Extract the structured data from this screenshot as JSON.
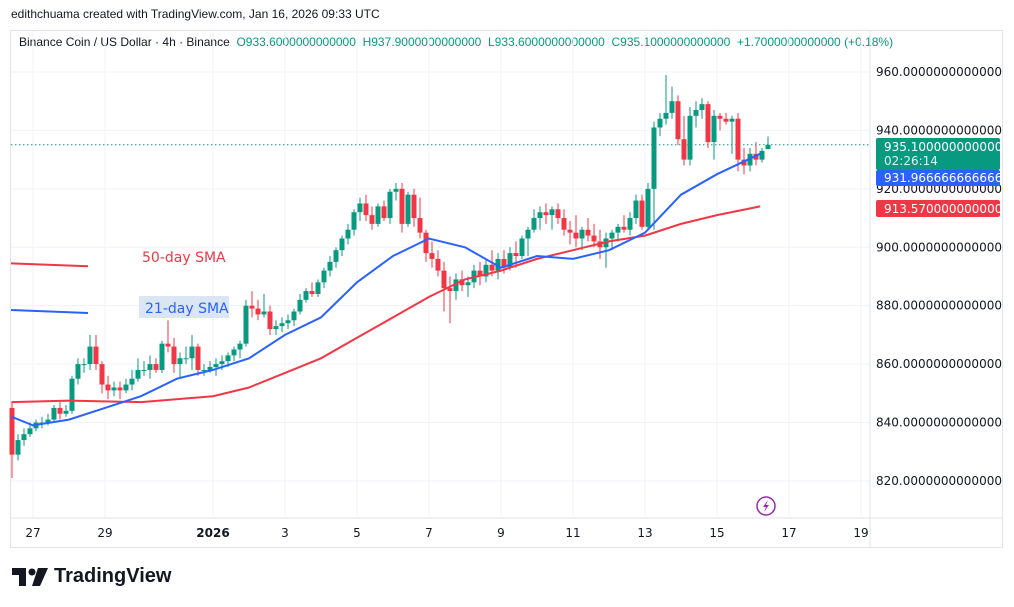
{
  "credit": "edithchuama created with TradingView.com, Jan 16, 2026 09:33 UTC",
  "legend": {
    "symbol": "Binance Coin / US Dollar · 4h · Binance",
    "open": "O933.6000000000000",
    "high": "H937.9000000000000",
    "low": "L933.6000000000000",
    "close": "C935.1000000000000",
    "change": "+1.7000000000000 (+0.18%)"
  },
  "badges": {
    "last_price": "935.1000000000000",
    "countdown": "02:26:14",
    "sma21": "931.9666666666660",
    "sma50": "913.5700000000000"
  },
  "annotations": {
    "sma50_label": "50-day SMA",
    "sma21_label": "21-day SMA"
  },
  "brand": "TradingView",
  "colors": {
    "up": "#089981",
    "down": "#f23645",
    "sma21": "#2962ff",
    "sma50": "#f23645",
    "sma21_label_bg": "#dbe6f5"
  },
  "chart_data": {
    "type": "candlestick",
    "interval": "4h",
    "ylim": [
      805,
      970
    ],
    "grid": true,
    "y_ticks": [
      "960.0000000000000",
      "940.0000000000000",
      "920.0000000000000",
      "900.0000000000000",
      "880.0000000000000",
      "860.0000000000000",
      "840.0000000000000",
      "820.0000000000000"
    ],
    "x_ticks": [
      {
        "label": "27",
        "day": 0
      },
      {
        "label": "29",
        "day": 2
      },
      {
        "label": "2026",
        "day": 5
      },
      {
        "label": "3",
        "day": 7
      },
      {
        "label": "5",
        "day": 9
      },
      {
        "label": "7",
        "day": 11
      },
      {
        "label": "9",
        "day": 13
      },
      {
        "label": "11",
        "day": 15
      },
      {
        "label": "13",
        "day": 17
      },
      {
        "label": "15",
        "day": 19
      },
      {
        "label": "17",
        "day": 21
      },
      {
        "label": "19",
        "day": 23
      }
    ],
    "first_candle_day": -0.667,
    "ohlc": [
      [
        845,
        847,
        821,
        829
      ],
      [
        829,
        836,
        827,
        834
      ],
      [
        834,
        838,
        832,
        836
      ],
      [
        836,
        840,
        835,
        838
      ],
      [
        838,
        841,
        837,
        840
      ],
      [
        840,
        842,
        838,
        840
      ],
      [
        840,
        843,
        839,
        841
      ],
      [
        841,
        846,
        840,
        845
      ],
      [
        845,
        847,
        841,
        843
      ],
      [
        843,
        846,
        842,
        844
      ],
      [
        844,
        856,
        843,
        855
      ],
      [
        855,
        862,
        853,
        860
      ],
      [
        860,
        862,
        857,
        860
      ],
      [
        860,
        870,
        858,
        866
      ],
      [
        866,
        870,
        858,
        860
      ],
      [
        860,
        861,
        850,
        853
      ],
      [
        853,
        856,
        848,
        851
      ],
      [
        851,
        854,
        849,
        852
      ],
      [
        852,
        854,
        848,
        851
      ],
      [
        851,
        855,
        850,
        853
      ],
      [
        853,
        858,
        851,
        855
      ],
      [
        855,
        862,
        854,
        858
      ],
      [
        858,
        861,
        856,
        858
      ],
      [
        858,
        863,
        855,
        860
      ],
      [
        860,
        862,
        857,
        858
      ],
      [
        858,
        868,
        857,
        867
      ],
      [
        867,
        875,
        864,
        866
      ],
      [
        866,
        869,
        857,
        860
      ],
      [
        860,
        864,
        855,
        862
      ],
      [
        862,
        866,
        860,
        862
      ],
      [
        862,
        870,
        858,
        866
      ],
      [
        866,
        867,
        856,
        858
      ],
      [
        858,
        860,
        856,
        858
      ],
      [
        858,
        861,
        857,
        859
      ],
      [
        859,
        862,
        856,
        860
      ],
      [
        860,
        863,
        858,
        861
      ],
      [
        861,
        864,
        859,
        863
      ],
      [
        863,
        866,
        861,
        865
      ],
      [
        865,
        868,
        862,
        867
      ],
      [
        867,
        882,
        866,
        880
      ],
      [
        880,
        885,
        876,
        879
      ],
      [
        879,
        882,
        875,
        877
      ],
      [
        877,
        884,
        876,
        878
      ],
      [
        878,
        880,
        870,
        872
      ],
      [
        872,
        875,
        870,
        873
      ],
      [
        873,
        876,
        871,
        874
      ],
      [
        874,
        877,
        872,
        875
      ],
      [
        875,
        879,
        873,
        878
      ],
      [
        878,
        884,
        877,
        882
      ],
      [
        882,
        886,
        881,
        885
      ],
      [
        885,
        888,
        883,
        884
      ],
      [
        884,
        889,
        883,
        888
      ],
      [
        888,
        893,
        886,
        892
      ],
      [
        892,
        897,
        890,
        895
      ],
      [
        895,
        900,
        893,
        899
      ],
      [
        899,
        904,
        897,
        903
      ],
      [
        903,
        908,
        901,
        906
      ],
      [
        906,
        913,
        904,
        912
      ],
      [
        912,
        917,
        909,
        915
      ],
      [
        915,
        918,
        909,
        911
      ],
      [
        911,
        914,
        906,
        908
      ],
      [
        908,
        915,
        907,
        914
      ],
      [
        914,
        916,
        909,
        910
      ],
      [
        910,
        920,
        908,
        919
      ],
      [
        919,
        922,
        916,
        920
      ],
      [
        920,
        922,
        905,
        908
      ],
      [
        908,
        919,
        907,
        918
      ],
      [
        918,
        920,
        907,
        910
      ],
      [
        910,
        917,
        903,
        905
      ],
      [
        905,
        906,
        895,
        898
      ],
      [
        898,
        902,
        893,
        896
      ],
      [
        896,
        899,
        890,
        892
      ],
      [
        892,
        895,
        878,
        886
      ],
      [
        886,
        890,
        874,
        885
      ],
      [
        885,
        891,
        882,
        889
      ],
      [
        889,
        892,
        885,
        887
      ],
      [
        887,
        890,
        883,
        888
      ],
      [
        888,
        894,
        886,
        892
      ],
      [
        892,
        895,
        887,
        890
      ],
      [
        890,
        896,
        888,
        894
      ],
      [
        894,
        899,
        890,
        892
      ],
      [
        892,
        898,
        889,
        896
      ],
      [
        896,
        899,
        891,
        893
      ],
      [
        893,
        900,
        892,
        898
      ],
      [
        898,
        902,
        893,
        897
      ],
      [
        897,
        904,
        896,
        903
      ],
      [
        903,
        907,
        897,
        906
      ],
      [
        906,
        913,
        905,
        910
      ],
      [
        910,
        914,
        906,
        912
      ],
      [
        912,
        915,
        908,
        911
      ],
      [
        911,
        914,
        906,
        913
      ],
      [
        913,
        915,
        908,
        910
      ],
      [
        910,
        913,
        904,
        906
      ],
      [
        906,
        909,
        901,
        905
      ],
      [
        905,
        911,
        900,
        903
      ],
      [
        903,
        907,
        899,
        906
      ],
      [
        906,
        910,
        902,
        904
      ],
      [
        904,
        908,
        900,
        902
      ],
      [
        902,
        906,
        896,
        900
      ],
      [
        900,
        905,
        893,
        903
      ],
      [
        903,
        906,
        899,
        905
      ],
      [
        905,
        908,
        902,
        907
      ],
      [
        907,
        911,
        905,
        906
      ],
      [
        906,
        912,
        904,
        910
      ],
      [
        910,
        918,
        908,
        916
      ],
      [
        916,
        918,
        906,
        907
      ],
      [
        907,
        922,
        906,
        920
      ],
      [
        920,
        943,
        906,
        941
      ],
      [
        941,
        946,
        938,
        944
      ],
      [
        944,
        959,
        942,
        946
      ],
      [
        946,
        955,
        944,
        950
      ],
      [
        950,
        952,
        935,
        937
      ],
      [
        937,
        945,
        928,
        930
      ],
      [
        930,
        948,
        928,
        945
      ],
      [
        945,
        950,
        941,
        947
      ],
      [
        947,
        951,
        944,
        949
      ],
      [
        949,
        950,
        934,
        936
      ],
      [
        936,
        947,
        930,
        945
      ],
      [
        945,
        946,
        940,
        944
      ],
      [
        944,
        946,
        942,
        943
      ],
      [
        943,
        945,
        932,
        944
      ],
      [
        944,
        946,
        926,
        930
      ],
      [
        930,
        934,
        925,
        928
      ],
      [
        928,
        934,
        926,
        932
      ],
      [
        932,
        936,
        928,
        930
      ],
      [
        930,
        934,
        929,
        933
      ],
      [
        933.6,
        937.9,
        933.6,
        935.1
      ]
    ],
    "sma21": [
      [
        -0.6,
        842
      ],
      [
        0,
        839
      ],
      [
        1,
        841
      ],
      [
        2,
        845
      ],
      [
        3,
        849
      ],
      [
        4,
        855
      ],
      [
        5,
        858
      ],
      [
        6,
        862
      ],
      [
        7,
        870
      ],
      [
        8,
        876
      ],
      [
        9,
        888
      ],
      [
        10,
        897
      ],
      [
        11,
        903
      ],
      [
        12,
        900
      ],
      [
        13,
        893
      ],
      [
        14,
        897
      ],
      [
        15,
        896
      ],
      [
        16,
        899
      ],
      [
        17,
        905
      ],
      [
        18,
        918
      ],
      [
        19,
        925
      ],
      [
        20.2,
        932
      ]
    ],
    "sma50": [
      [
        -0.6,
        847
      ],
      [
        1,
        847.5
      ],
      [
        3,
        847
      ],
      [
        5,
        849
      ],
      [
        6,
        852
      ],
      [
        7,
        857
      ],
      [
        8,
        862
      ],
      [
        9,
        869
      ],
      [
        10,
        876
      ],
      [
        11,
        883
      ],
      [
        12,
        889
      ],
      [
        13,
        892
      ],
      [
        14,
        896
      ],
      [
        15,
        899
      ],
      [
        16,
        902
      ],
      [
        17,
        904
      ],
      [
        18,
        908
      ],
      [
        19,
        911
      ],
      [
        20.2,
        914
      ]
    ],
    "sma50_legend_line": [
      894.5,
      893.5
    ],
    "sma21_legend_line": [
      878.5,
      877.5
    ],
    "last_price": 935.1
  }
}
